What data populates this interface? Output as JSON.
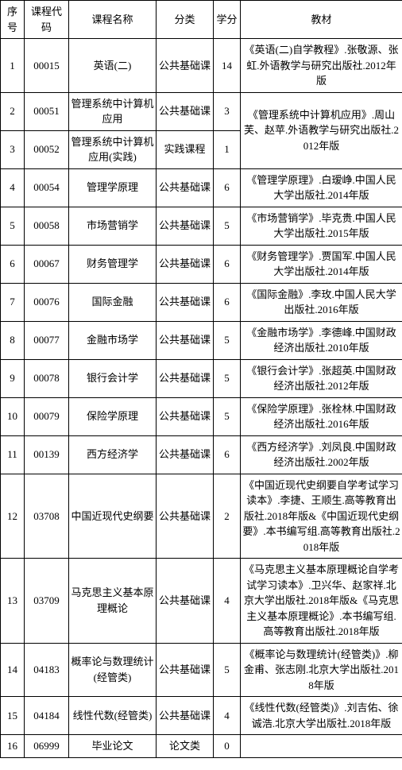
{
  "headers": {
    "seq": "序号",
    "code": "课程代码",
    "name": "课程名称",
    "category": "分类",
    "credit": "学分",
    "textbook": "教材"
  },
  "rows": [
    {
      "seq": "1",
      "code": "00015",
      "name": "英语(二)",
      "category": "公共基础课",
      "credit": "14",
      "textbook": "《英语(二)自学教程》.张敬源、张虹.外语教学与研究出版社.2012年版",
      "rowspan_text": 1
    },
    {
      "seq": "2",
      "code": "00051",
      "name": "管理系统中计算机应用",
      "category": "公共基础课",
      "credit": "3",
      "textbook": "《管理系统中计算机应用》.周山芙、赵苹.外语教学与研究出版社.2012年版",
      "rowspan_text": 2
    },
    {
      "seq": "3",
      "code": "00052",
      "name": "管理系统中计算机应用(实践)",
      "category": "实践课程",
      "credit": "1",
      "textbook": null,
      "rowspan_text": 0
    },
    {
      "seq": "4",
      "code": "00054",
      "name": "管理学原理",
      "category": "公共基础课",
      "credit": "6",
      "textbook": "《管理学原理》.白瑷峥.中国人民大学出版社.2014年版",
      "rowspan_text": 1
    },
    {
      "seq": "5",
      "code": "00058",
      "name": "市场营销学",
      "category": "公共基础课",
      "credit": "5",
      "textbook": "《市场营销学》.毕克贵.中国人民大学出版社.2015年版",
      "rowspan_text": 1
    },
    {
      "seq": "6",
      "code": "00067",
      "name": "财务管理学",
      "category": "公共基础课",
      "credit": "6",
      "textbook": "《财务管理学》.贾国军.中国人民大学出版社.2014年版",
      "rowspan_text": 1
    },
    {
      "seq": "7",
      "code": "00076",
      "name": "国际金融",
      "category": "公共基础课",
      "credit": "6",
      "textbook": "《国际金融》.李玫.中国人民大学出版社.2016年版",
      "rowspan_text": 1
    },
    {
      "seq": "8",
      "code": "00077",
      "name": "金融市场学",
      "category": "公共基础课",
      "credit": "5",
      "textbook": "《金融市场学》.李德峰.中国财政经济出版社.2010年版",
      "rowspan_text": 1
    },
    {
      "seq": "9",
      "code": "00078",
      "name": "银行会计学",
      "category": "公共基础课",
      "credit": "5",
      "textbook": "《银行会计学》.张超英.中国财政经济出版社.2012年版",
      "rowspan_text": 1
    },
    {
      "seq": "10",
      "code": "00079",
      "name": "保险学原理",
      "category": "公共基础课",
      "credit": "5",
      "textbook": "《保险学原理》.张栓林.中国财政经济出版社.2016年版",
      "rowspan_text": 1
    },
    {
      "seq": "11",
      "code": "00139",
      "name": "西方经济学",
      "category": "公共基础课",
      "credit": "6",
      "textbook": "《西方经济学》.刘凤良.中国财政经济出版社.2002年版",
      "rowspan_text": 1
    },
    {
      "seq": "12",
      "code": "03708",
      "name": "中国近现代史纲要",
      "category": "公共基础课",
      "credit": "2",
      "textbook": "《中国近现代史纲要自学考试学习读本》.李捷、王顺生.高等教育出版社.2018年版&《中国近现代史纲要》.本书编写组.高等教育出版社.2018年版",
      "rowspan_text": 1
    },
    {
      "seq": "13",
      "code": "03709",
      "name": "马克思主义基本原理概论",
      "category": "公共基础课",
      "credit": "4",
      "textbook": "《马克思主义基本原理概论自学考试学习读本》.卫兴华、赵家祥.北京大学出版社.2018年版&《马克思主义基本原理概论》.本书编写组.高等教育出版社.2018年版",
      "rowspan_text": 1
    },
    {
      "seq": "14",
      "code": "04183",
      "name": "概率论与数理统计(经管类)",
      "category": "公共基础课",
      "credit": "5",
      "textbook": "《概率论与数理统计(经管类)》.柳金甫、张志刚.北京大学出版社.2018年版",
      "rowspan_text": 1
    },
    {
      "seq": "15",
      "code": "04184",
      "name": "线性代数(经管类)",
      "category": "公共基础课",
      "credit": "4",
      "textbook": "《线性代数(经管类)》.刘吉佑、徐诚浩.北京大学出版社.2018年版",
      "rowspan_text": 1
    },
    {
      "seq": "16",
      "code": "06999",
      "name": "毕业论文",
      "category": "论文类",
      "credit": "0",
      "textbook": "",
      "rowspan_text": 1
    }
  ]
}
